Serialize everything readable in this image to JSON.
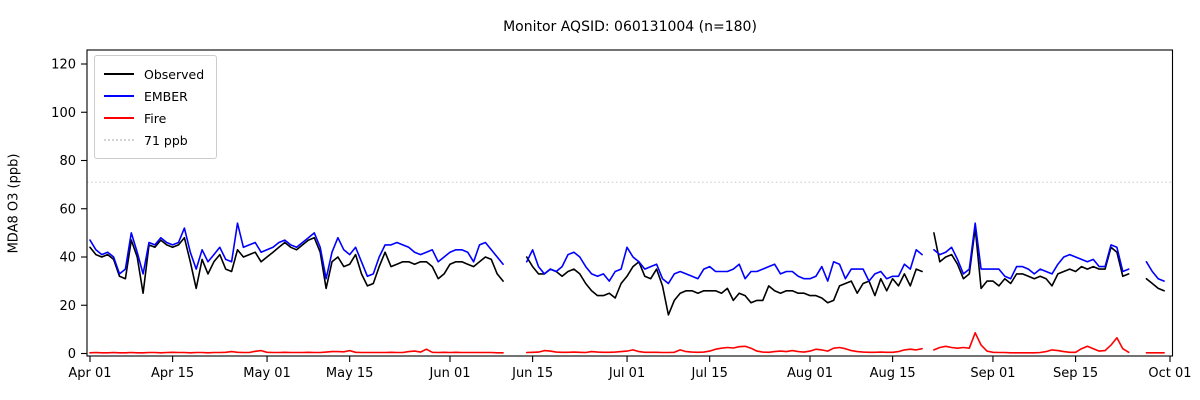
{
  "title": "Monitor AQSID: 060131004 (n=180)",
  "y_axis": {
    "label": "MDA8 O3 (ppb)",
    "ticks": [
      0,
      20,
      40,
      60,
      80,
      100,
      120
    ]
  },
  "x_axis": {
    "ticks": [
      {
        "label": "Apr 01",
        "day": 0
      },
      {
        "label": "Apr 15",
        "day": 14
      },
      {
        "label": "May 01",
        "day": 30
      },
      {
        "label": "May 15",
        "day": 44
      },
      {
        "label": "Jun 01",
        "day": 61
      },
      {
        "label": "Jun 15",
        "day": 75
      },
      {
        "label": "Jul 01",
        "day": 91
      },
      {
        "label": "Jul 15",
        "day": 105
      },
      {
        "label": "Aug 01",
        "day": 122
      },
      {
        "label": "Aug 15",
        "day": 136
      },
      {
        "label": "Sep 01",
        "day": 153
      },
      {
        "label": "Sep 15",
        "day": 167
      },
      {
        "label": "Oct 01",
        "day": 183
      }
    ],
    "total_days": 183
  },
  "legend": {
    "items": [
      {
        "label": "Observed",
        "color": "#000000",
        "style": "solid"
      },
      {
        "label": "EMBER",
        "color": "#0000ff",
        "style": "solid"
      },
      {
        "label": "Fire",
        "color": "#ff0000",
        "style": "solid"
      },
      {
        "label": "71 ppb",
        "color": "#d3d3d3",
        "style": "dotted"
      }
    ]
  },
  "chart_data": {
    "type": "line",
    "title": "Monitor AQSID: 060131004 (n=180)",
    "xlabel": "",
    "ylabel": "MDA8 O3 (ppb)",
    "ylim": [
      0,
      120
    ],
    "x_start": "Apr 01",
    "x_end": "Sep 30",
    "x_frequency": "daily",
    "legend_position": "upper left",
    "grid": false,
    "threshold": {
      "value": 71,
      "label": "71 ppb",
      "color": "#d3d3d3",
      "style": "dotted"
    },
    "gaps": "null values indicate missing days (mid-June, Aug 21, Sep 25-26)",
    "series": [
      {
        "name": "Observed",
        "color": "#000000",
        "values": [
          44,
          41,
          40,
          41,
          39,
          32,
          31,
          47,
          40,
          25,
          45,
          44,
          47,
          45,
          44,
          45,
          48,
          38,
          27,
          39,
          33,
          38,
          41,
          35,
          34,
          43,
          40,
          41,
          42,
          38,
          40,
          42,
          44,
          46,
          44,
          43,
          45,
          47,
          48,
          42,
          27,
          38,
          40,
          36,
          37,
          41,
          33,
          28,
          29,
          36,
          42,
          36,
          37,
          38,
          38,
          37,
          38,
          38,
          36,
          31,
          33,
          37,
          38,
          38,
          37,
          36,
          38,
          40,
          39,
          33,
          30,
          null,
          null,
          null,
          40,
          36,
          33,
          33,
          35,
          34,
          32,
          34,
          35,
          33,
          29,
          26,
          24,
          24,
          25,
          23,
          29,
          32,
          36,
          38,
          32,
          31,
          35,
          28,
          16,
          22,
          25,
          26,
          26,
          25,
          26,
          26,
          26,
          25,
          27,
          22,
          25,
          24,
          21,
          22,
          22,
          28,
          26,
          25,
          26,
          26,
          25,
          25,
          24,
          24,
          23,
          21,
          22,
          28,
          29,
          30,
          25,
          29,
          30,
          24,
          31,
          26,
          31,
          28,
          33,
          28,
          35,
          34,
          null,
          50,
          38,
          40,
          41,
          37,
          31,
          33,
          52,
          27,
          30,
          30,
          28,
          31,
          29,
          33,
          33,
          32,
          31,
          32,
          31,
          28,
          33,
          34,
          35,
          34,
          36,
          35,
          36,
          35,
          35,
          44,
          42,
          32,
          33,
          null,
          null,
          31,
          29,
          27,
          26
        ]
      },
      {
        "name": "EMBER",
        "color": "#0000ff",
        "values": [
          47,
          43,
          41,
          42,
          40,
          33,
          35,
          50,
          42,
          33,
          46,
          45,
          48,
          46,
          45,
          46,
          52,
          42,
          35,
          43,
          38,
          41,
          44,
          39,
          38,
          54,
          44,
          45,
          46,
          42,
          43,
          44,
          46,
          47,
          45,
          44,
          46,
          48,
          50,
          44,
          31,
          42,
          48,
          43,
          41,
          44,
          38,
          32,
          33,
          40,
          45,
          45,
          46,
          45,
          44,
          42,
          41,
          42,
          43,
          38,
          40,
          42,
          43,
          43,
          42,
          38,
          45,
          46,
          43,
          40,
          37,
          null,
          null,
          null,
          38,
          43,
          36,
          33,
          35,
          34,
          36,
          41,
          42,
          40,
          36,
          33,
          32,
          33,
          30,
          34,
          35,
          44,
          40,
          38,
          35,
          36,
          37,
          31,
          29,
          33,
          34,
          33,
          32,
          31,
          35,
          36,
          34,
          34,
          34,
          35,
          37,
          31,
          34,
          34,
          35,
          36,
          37,
          33,
          34,
          34,
          32,
          31,
          31,
          32,
          36,
          30,
          38,
          37,
          31,
          35,
          35,
          35,
          30,
          33,
          34,
          31,
          32,
          32,
          37,
          35,
          43,
          41,
          null,
          43,
          41,
          42,
          44,
          39,
          33,
          35,
          54,
          35,
          35,
          35,
          35,
          32,
          31,
          36,
          36,
          35,
          33,
          35,
          34,
          33,
          37,
          40,
          41,
          40,
          39,
          38,
          39,
          36,
          36,
          45,
          44,
          34,
          35,
          null,
          null,
          38,
          34,
          31,
          30
        ]
      },
      {
        "name": "Fire",
        "color": "#ff0000",
        "values": [
          0.3,
          0.4,
          0.3,
          0.3,
          0.4,
          0.3,
          0.3,
          0.4,
          0.3,
          0.3,
          0.4,
          0.4,
          0.3,
          0.4,
          0.5,
          0.4,
          0.4,
          0.3,
          0.4,
          0.4,
          0.3,
          0.4,
          0.4,
          0.5,
          0.8,
          0.5,
          0.4,
          0.4,
          0.9,
          1.2,
          0.5,
          0.4,
          0.4,
          0.5,
          0.4,
          0.4,
          0.4,
          0.5,
          0.4,
          0.4,
          0.6,
          0.8,
          0.8,
          0.7,
          1.2,
          0.5,
          0.4,
          0.4,
          0.4,
          0.4,
          0.4,
          0.5,
          0.4,
          0.4,
          0.8,
          1.0,
          0.6,
          1.8,
          0.5,
          0.4,
          0.5,
          0.4,
          0.5,
          0.4,
          0.4,
          0.4,
          0.4,
          0.4,
          0.4,
          0.3,
          0.3,
          null,
          null,
          null,
          0.4,
          0.5,
          0.6,
          1.2,
          1.0,
          0.6,
          0.5,
          0.5,
          0.6,
          0.5,
          0.4,
          0.8,
          0.6,
          0.5,
          0.5,
          0.6,
          0.8,
          1.0,
          1.5,
          0.8,
          0.5,
          0.5,
          0.5,
          0.4,
          0.4,
          0.5,
          1.5,
          0.8,
          0.6,
          0.5,
          0.6,
          1.0,
          1.8,
          2.2,
          2.5,
          2.3,
          2.8,
          3.0,
          2.2,
          1.0,
          0.6,
          0.5,
          0.8,
          1.0,
          0.8,
          1.2,
          0.8,
          0.6,
          1.0,
          1.8,
          1.5,
          1.0,
          2.2,
          2.5,
          2.0,
          1.2,
          0.8,
          0.6,
          0.5,
          0.5,
          0.6,
          0.5,
          0.5,
          0.8,
          1.5,
          1.8,
          1.5,
          2.0,
          null,
          1.5,
          2.5,
          3.0,
          2.5,
          2.2,
          2.5,
          2.2,
          8.6,
          3.5,
          1.0,
          0.5,
          0.4,
          0.4,
          0.3,
          0.3,
          0.3,
          0.3,
          0.3,
          0.4,
          0.8,
          1.5,
          1.2,
          0.8,
          0.5,
          0.5,
          2.0,
          3.0,
          2.0,
          1.0,
          1.2,
          3.5,
          6.5,
          2.0,
          0.5,
          null,
          null,
          0.3,
          0.3,
          0.3,
          0.3
        ]
      }
    ]
  }
}
